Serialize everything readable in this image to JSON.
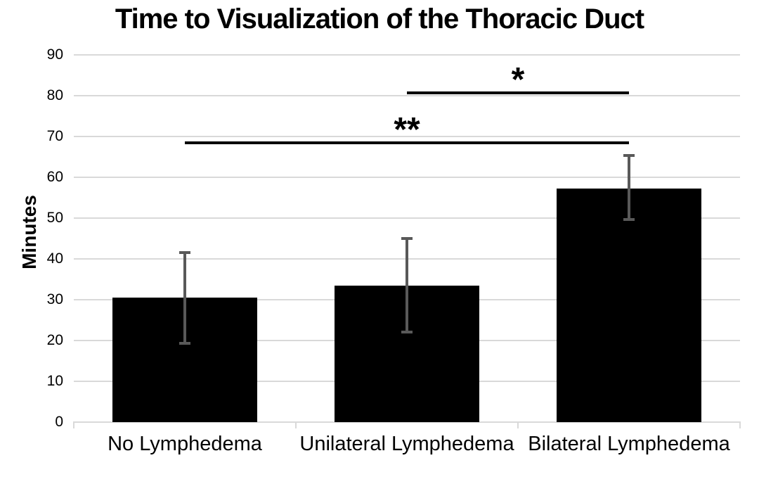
{
  "chart_data": {
    "type": "bar",
    "title": "Time to Visualization of the Thoracic Duct",
    "xlabel": "",
    "ylabel": "Minutes",
    "ylim": [
      0,
      90
    ],
    "y_ticks": [
      0,
      10,
      20,
      30,
      40,
      50,
      60,
      70,
      80,
      90
    ],
    "grid": true,
    "legend": "none",
    "categories": [
      "No Lymphedema",
      "Unilateral Lymphedema",
      "Bilateral Lymphedema"
    ],
    "values": [
      30.5,
      33.5,
      57.3
    ],
    "error_upper": [
      41.5,
      45.0,
      65.3
    ],
    "error_lower": [
      19.3,
      22.0,
      49.7
    ],
    "significance_annotations": [
      {
        "label": "**",
        "from_category": "No Lymphedema",
        "to_category": "Bilateral Lymphedema",
        "from_index": 0,
        "to_index": 2,
        "line_y_minutes": 68.5
      },
      {
        "label": "*",
        "from_category": "Unilateral Lymphedema",
        "to_category": "Bilateral Lymphedema",
        "from_index": 1,
        "to_index": 2,
        "line_y_minutes": 80.7
      }
    ],
    "colors": {
      "bar": "#000000",
      "error_bar": "#595959",
      "gridline": "#D9D9D9",
      "significance_line": "#000000",
      "text": "#000000",
      "background": "#FFFFFF"
    }
  }
}
